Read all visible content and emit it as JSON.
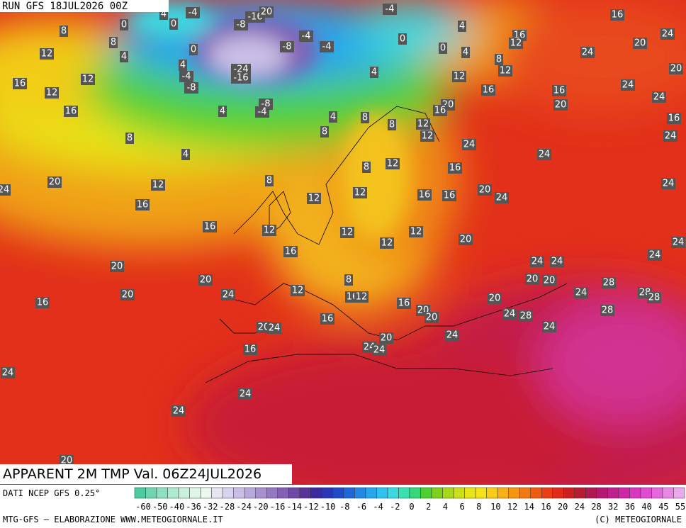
{
  "header": {
    "run": "RUN GFS 18JUL2026 00Z"
  },
  "footer": {
    "title": "APPARENT 2M TMP Val. 06Z24JUL2026",
    "source": "DATI NCEP GFS 0.25°",
    "credit": "MTG-GFS — ELABORAZIONE WWW.METEOGIORNALE.IT",
    "copyright": "(C) METEOGIORNALE"
  },
  "colorbar": {
    "ticks": [
      -60,
      -50,
      -40,
      -36,
      -32,
      -28,
      -24,
      -20,
      -16,
      -14,
      -12,
      -10,
      -8,
      -6,
      -4,
      -2,
      0,
      2,
      4,
      6,
      8,
      10,
      12,
      14,
      16,
      20,
      24,
      28,
      32,
      36,
      40,
      45,
      55
    ],
    "colors": [
      "#4fc9a0",
      "#6fd5b0",
      "#8fe0c0",
      "#aeeacf",
      "#c9f0dc",
      "#dff5e8",
      "#eef6f0",
      "#e6e6f3",
      "#d8d3ee",
      "#c9bfe6",
      "#b9a8dc",
      "#a890d0",
      "#9677c2",
      "#845fb4",
      "#6e48a6",
      "#5a3298",
      "#3b2aa0",
      "#2a36b4",
      "#1f4cc8",
      "#1f68d8",
      "#2188e4",
      "#27a6ec",
      "#2fc2ee",
      "#3cd8e0",
      "#3ae0b0",
      "#34d878",
      "#50d030",
      "#7ed020",
      "#a6d81c",
      "#ccdf1a",
      "#e8e418",
      "#f5e21a",
      "#f8cc18",
      "#f8b016",
      "#f69414",
      "#f27812",
      "#ee5c12",
      "#e84014",
      "#e02a1a",
      "#cc2020",
      "#b81c30",
      "#b01850",
      "#b41870",
      "#c0208c",
      "#cc28a8",
      "#d838c0",
      "#e04cd0",
      "#e468dc",
      "#e888e4",
      "#eca8ec"
    ]
  },
  "map_labels": [
    -4,
    0,
    0,
    4,
    8,
    8,
    4,
    12,
    12,
    16,
    12,
    16,
    -8,
    -16,
    20,
    0,
    4,
    -4,
    -8,
    -24,
    -16,
    -8,
    -4,
    -4,
    -4,
    0,
    4,
    0,
    4,
    4,
    4,
    -8,
    -4,
    4,
    8,
    8,
    8,
    8,
    4,
    8,
    8,
    12,
    16,
    16,
    12,
    16,
    12,
    12,
    12,
    12,
    12,
    12,
    16,
    16,
    16,
    20,
    24,
    24,
    24,
    16,
    12,
    8,
    12,
    12,
    16,
    16,
    20,
    20,
    16,
    12,
    12,
    24,
    16,
    20,
    24,
    24,
    24,
    20,
    16,
    24,
    24,
    20,
    24,
    20,
    20,
    20,
    24,
    16,
    12,
    8,
    16,
    12,
    16,
    20,
    20,
    20,
    24,
    24,
    20,
    20,
    20,
    24,
    28,
    24,
    24,
    28,
    28,
    28,
    28,
    24,
    24,
    16,
    20,
    24,
    16,
    20,
    24,
    24,
    24,
    24,
    24,
    24,
    20
  ]
}
